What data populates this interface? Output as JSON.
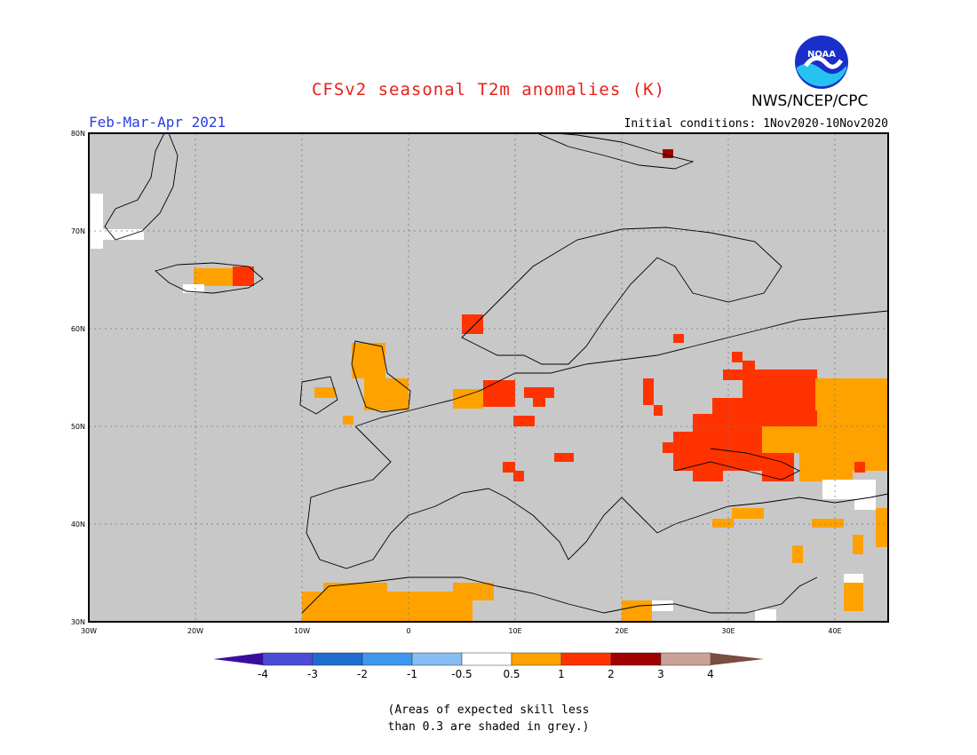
{
  "title": "CFSv2 seasonal T2m anomalies (K)",
  "agency": "NWS/NCEP/CPC",
  "season": "Feb-Mar-Apr 2021",
  "initial_conditions": "Initial conditions: 1Nov2020-10Nov2020",
  "logo": {
    "text": "NOAA",
    "name": "noaa-logo"
  },
  "map": {
    "lon_range": [
      -30,
      45
    ],
    "lat_range": [
      30,
      80
    ],
    "lat_labels": [
      "80N",
      "70N",
      "60N",
      "50N",
      "40N",
      "30N"
    ],
    "lon_labels": [
      "30W",
      "20W",
      "10W",
      "0",
      "10E",
      "20E",
      "30E",
      "40E"
    ],
    "background_color": "#c8c8c8"
  },
  "colorbar": {
    "colors": [
      "#3a0e9c",
      "#4a4cd6",
      "#1e6cd0",
      "#3d97ec",
      "#86bdf2",
      "#ffffff",
      "#ffa200",
      "#ff3300",
      "#a00000",
      "#c9a196",
      "#7a4d40"
    ],
    "labels": [
      "-4",
      "-3",
      "-2",
      "-1",
      "-0.5",
      "0.5",
      "1",
      "2",
      "3",
      "4"
    ]
  },
  "note": [
    "(Areas of expected skill less",
    "than 0.3 are shaded in grey.)"
  ]
}
